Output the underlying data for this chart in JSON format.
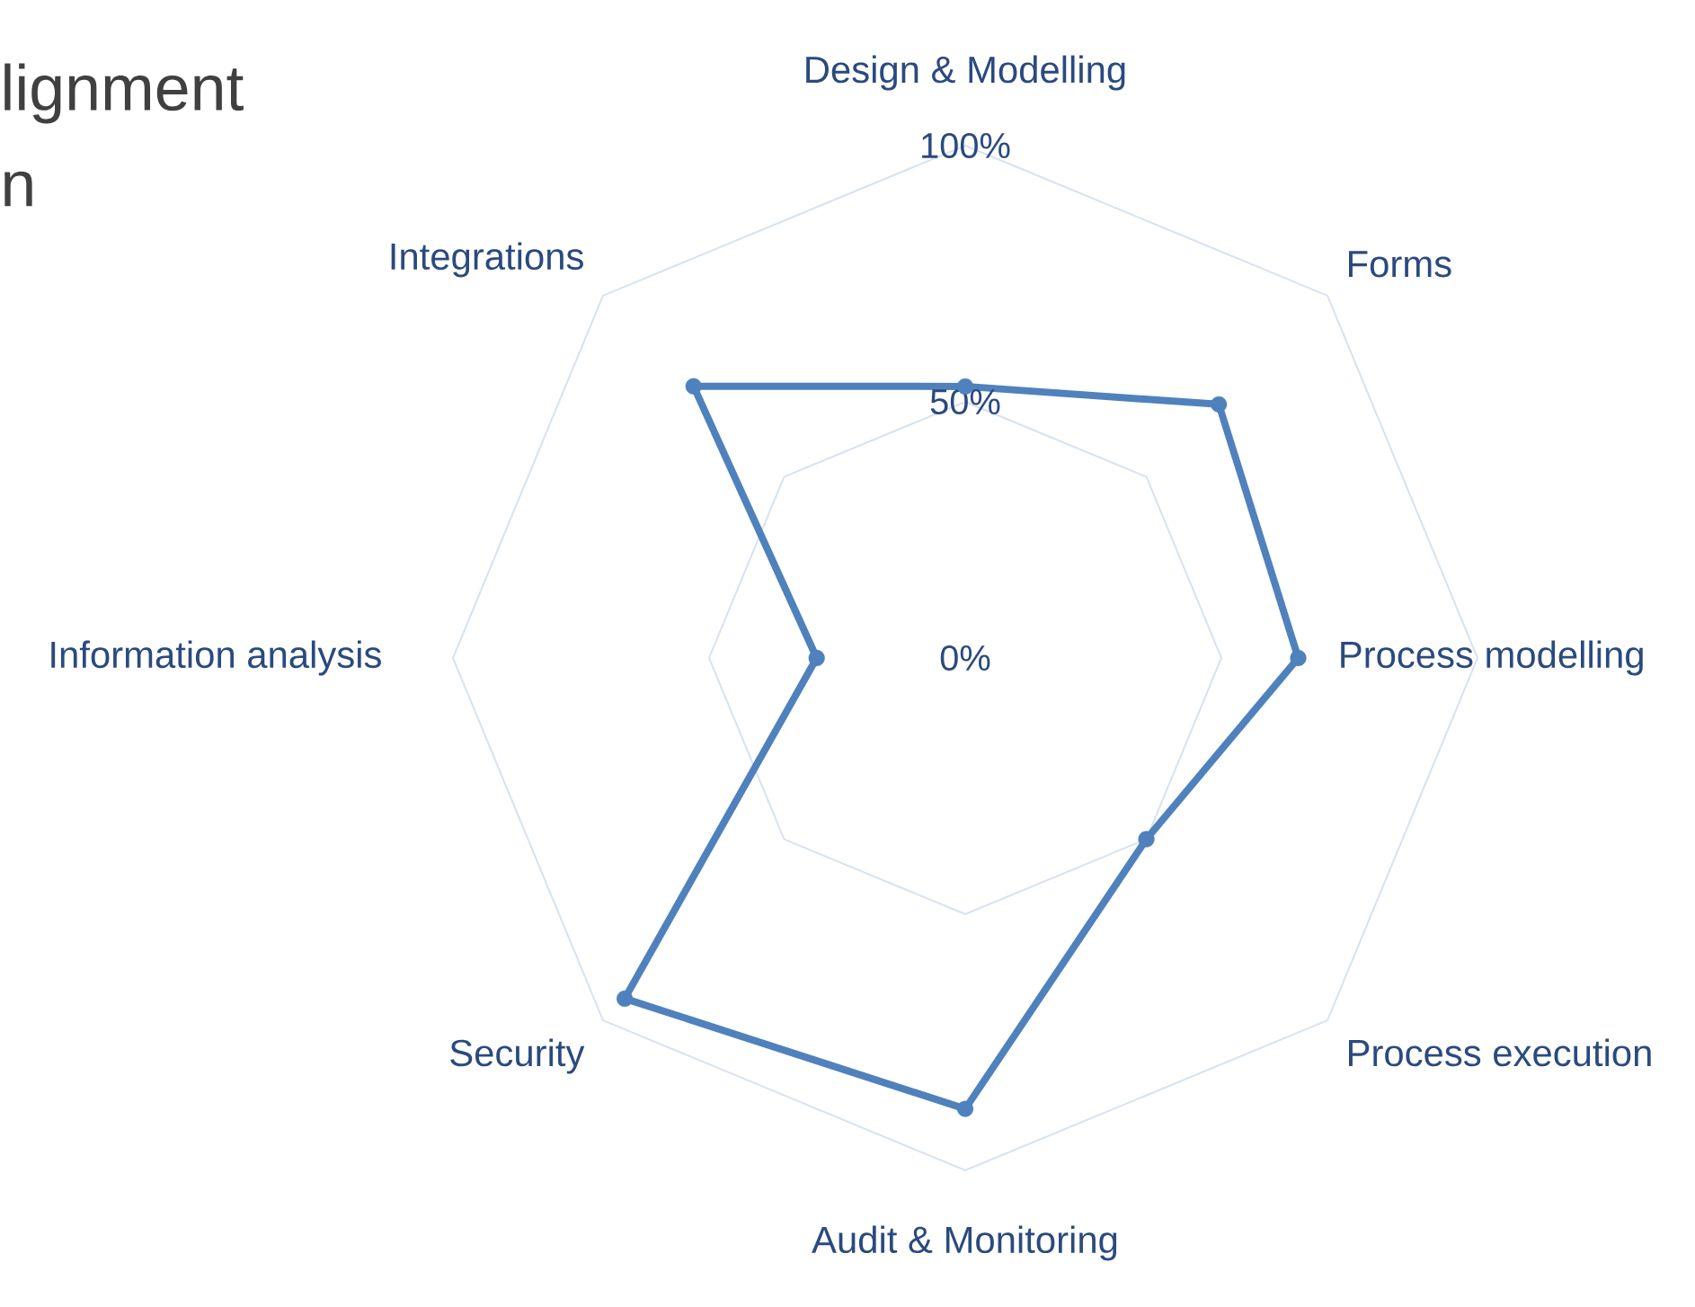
{
  "chart_data": {
    "type": "radar",
    "annotations": [
      "lignment",
      "n"
    ],
    "categories": [
      "Design & Modelling",
      "Forms",
      "Process modelling",
      "Process execution",
      "Audit & Monitoring",
      "Security",
      "Information analysis",
      "Integrations"
    ],
    "series": [
      {
        "color": "#4f81bd",
        "values": [
          53,
          70,
          65,
          50,
          88,
          94,
          29,
          75
        ]
      }
    ],
    "ylim": [
      0,
      100
    ],
    "yticks": [
      {
        "value": 0,
        "label": "0%"
      },
      {
        "value": 50,
        "label": "50%"
      },
      {
        "value": 100,
        "label": "100%"
      }
    ],
    "marker": "circle",
    "grid": true
  }
}
